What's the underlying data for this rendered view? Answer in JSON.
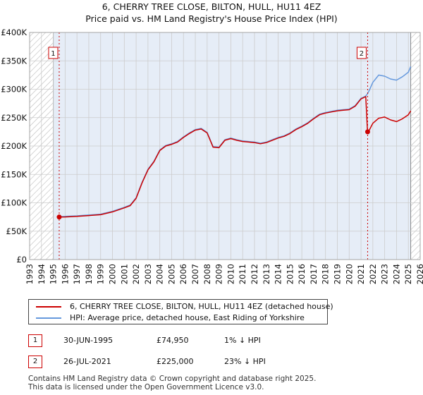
{
  "title_line1": "6, CHERRY TREE CLOSE, BILTON, HULL, HU11 4EZ",
  "title_line2": "Price paid vs. HM Land Registry's House Price Index (HPI)",
  "colors": {
    "property": "#cc0000",
    "hpi": "#6699dd",
    "band": "#e6edf7",
    "grid": "#cccccc"
  },
  "chart_data": {
    "type": "line",
    "x_range": [
      1993,
      2026
    ],
    "y_range": [
      0,
      400000
    ],
    "y_ticks": [
      0,
      50000,
      100000,
      150000,
      200000,
      250000,
      300000,
      350000,
      400000
    ],
    "y_tick_labels": [
      "£0",
      "£50K",
      "£100K",
      "£150K",
      "£200K",
      "£250K",
      "£300K",
      "£350K",
      "£400K"
    ],
    "x_ticks": [
      1993,
      1994,
      1995,
      1996,
      1997,
      1998,
      1999,
      2000,
      2001,
      2002,
      2003,
      2004,
      2005,
      2006,
      2007,
      2008,
      2009,
      2010,
      2011,
      2012,
      2013,
      2014,
      2015,
      2016,
      2017,
      2018,
      2019,
      2020,
      2021,
      2022,
      2023,
      2024,
      2025,
      2026
    ],
    "hatched_ranges": [
      [
        1993,
        1995.0
      ],
      [
        2025.2,
        2026
      ]
    ],
    "shaded_range": [
      1995.0,
      2025.2
    ],
    "series": [
      {
        "name": "6, CHERRY TREE CLOSE, BILTON, HULL, HU11 4EZ (detached house)",
        "color": "#cc0000",
        "x": [
          1995.5,
          1996,
          1997,
          1998,
          1999,
          2000,
          2001,
          2001.5,
          2002,
          2002.5,
          2003,
          2003.5,
          2004,
          2004.5,
          2005,
          2005.5,
          2006,
          2006.5,
          2007,
          2007.5,
          2008,
          2008.5,
          2009,
          2009.5,
          2010,
          2010.5,
          2011,
          2011.5,
          2012,
          2012.5,
          2013,
          2013.5,
          2014,
          2014.5,
          2015,
          2015.5,
          2016,
          2016.5,
          2017,
          2017.5,
          2018,
          2018.5,
          2019,
          2019.5,
          2020,
          2020.5,
          2021,
          2021.4,
          2021.55,
          2021.7,
          2022,
          2022.5,
          2023,
          2023.5,
          2024,
          2024.5,
          2025,
          2025.2
        ],
        "values": [
          74950,
          75000,
          76000,
          77500,
          79000,
          84000,
          91000,
          95000,
          108000,
          135000,
          158000,
          172000,
          192000,
          200000,
          203000,
          207000,
          215000,
          222000,
          228000,
          230000,
          223000,
          198000,
          197000,
          210000,
          213000,
          210000,
          208000,
          207000,
          206000,
          204000,
          206000,
          210000,
          214000,
          217000,
          222000,
          229000,
          234000,
          240000,
          248000,
          255000,
          258000,
          260000,
          262000,
          263000,
          264000,
          270000,
          283000,
          287000,
          225000,
          228000,
          240000,
          249000,
          251000,
          246000,
          243000,
          248000,
          255000,
          262000
        ]
      },
      {
        "name": "HPI: Average price, detached house, East Riding of Yorkshire",
        "color": "#6699dd",
        "x": [
          1995.5,
          1996,
          1997,
          1998,
          1999,
          2000,
          2001,
          2001.5,
          2002,
          2002.5,
          2003,
          2003.5,
          2004,
          2004.5,
          2005,
          2005.5,
          2006,
          2006.5,
          2007,
          2007.5,
          2008,
          2008.5,
          2009,
          2009.5,
          2010,
          2010.5,
          2011,
          2011.5,
          2012,
          2012.5,
          2013,
          2013.5,
          2014,
          2014.5,
          2015,
          2015.5,
          2016,
          2016.5,
          2017,
          2017.5,
          2018,
          2018.5,
          2019,
          2019.5,
          2020,
          2020.5,
          2021,
          2021.4,
          2021.55,
          2021.7,
          2022,
          2022.5,
          2023,
          2023.5,
          2024,
          2024.5,
          2025,
          2025.2
        ],
        "values": [
          75500,
          76000,
          77000,
          78500,
          80000,
          85000,
          92000,
          96000,
          109000,
          136000,
          159000,
          173000,
          193000,
          201000,
          204000,
          208000,
          216000,
          223000,
          229000,
          231000,
          224000,
          199000,
          198000,
          211000,
          214000,
          211000,
          209000,
          208000,
          207000,
          205000,
          207000,
          211000,
          215000,
          218000,
          223000,
          230000,
          235000,
          241000,
          249000,
          256000,
          259000,
          261000,
          263000,
          264000,
          265000,
          271000,
          284000,
          288000,
          292000,
          298000,
          312000,
          325000,
          323000,
          318000,
          316000,
          322000,
          330000,
          340000
        ]
      }
    ],
    "markers": [
      {
        "label": "1",
        "x": 1995.5,
        "value": 74950
      },
      {
        "label": "2",
        "x": 2021.56,
        "value": 225000
      }
    ]
  },
  "legend": {
    "property_label": "6, CHERRY TREE CLOSE, BILTON, HULL, HU11 4EZ (detached house)",
    "hpi_label": "HPI: Average price, detached house, East Riding of Yorkshire"
  },
  "sales": [
    {
      "num": "1",
      "date": "30-JUN-1995",
      "price": "£74,950",
      "hpi": "1% ↓ HPI"
    },
    {
      "num": "2",
      "date": "26-JUL-2021",
      "price": "£225,000",
      "hpi": "23% ↓ HPI"
    }
  ],
  "footer_line1": "Contains HM Land Registry data © Crown copyright and database right 2025.",
  "footer_line2": "This data is licensed under the Open Government Licence v3.0."
}
